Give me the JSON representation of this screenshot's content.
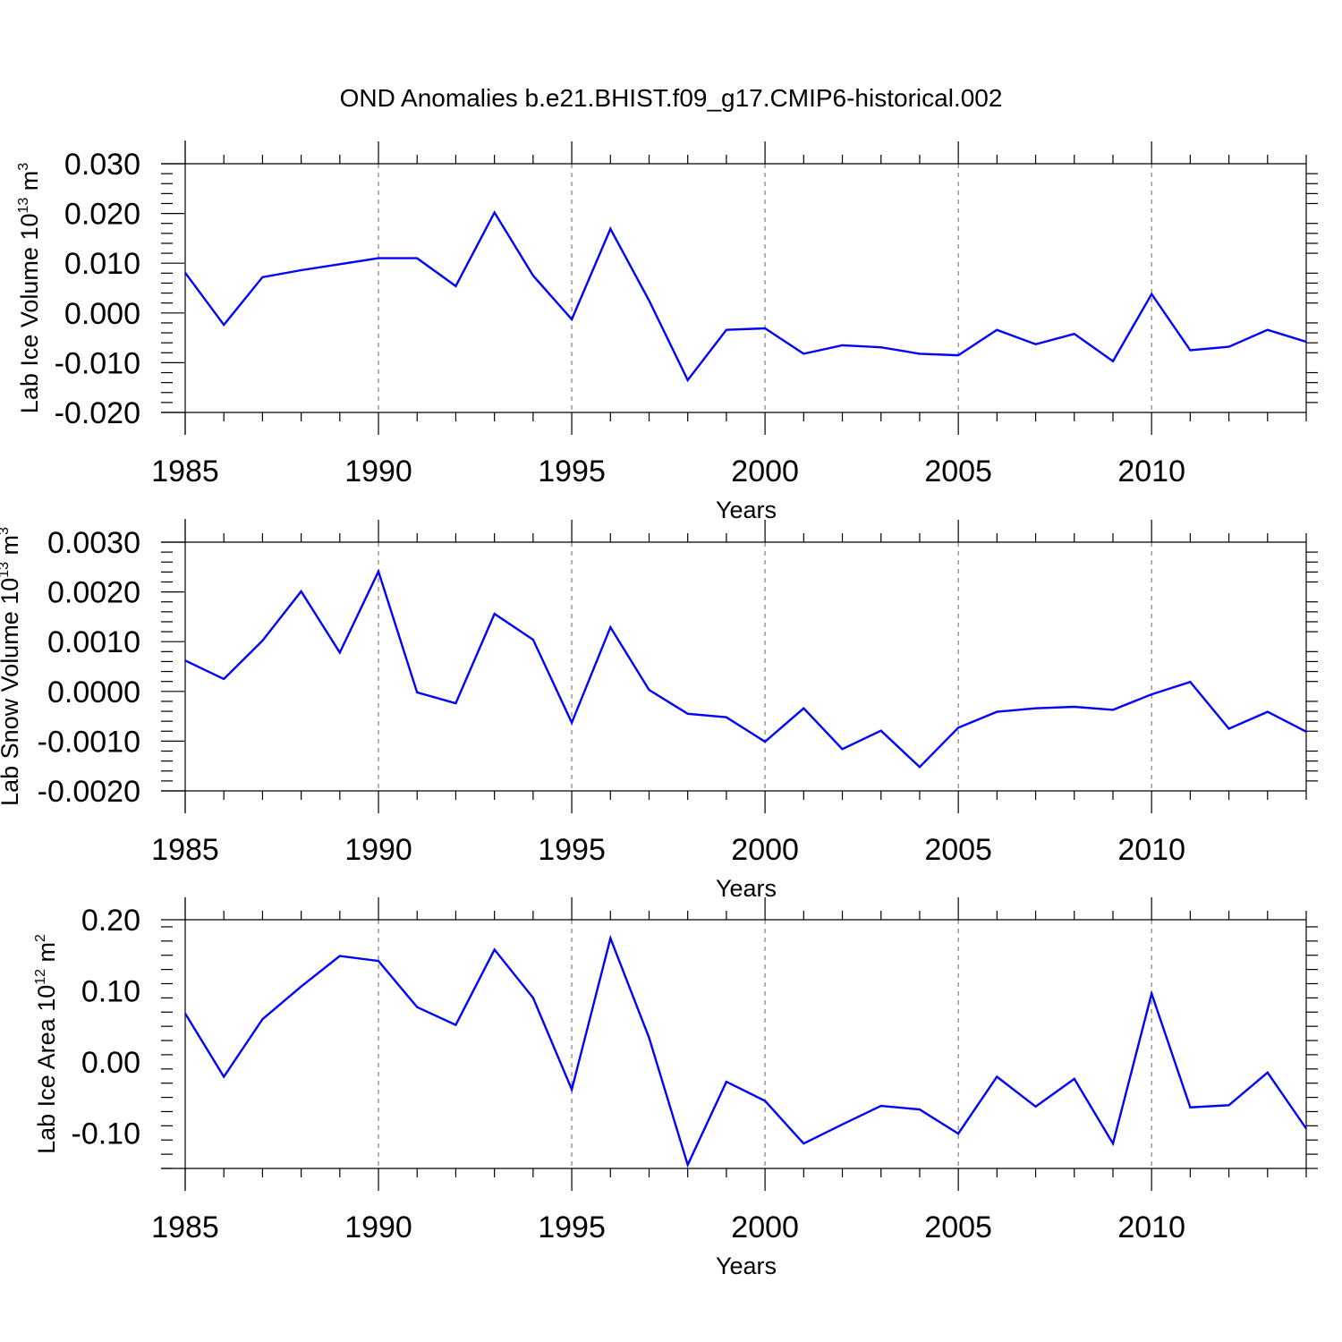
{
  "title": "OND Anomalies b.e21.BHIST.f09_g17.CMIP6-historical.002",
  "colors": {
    "series": "#0000ff",
    "axes": "#000000",
    "grid": "#808080"
  },
  "chart_data": [
    {
      "type": "line",
      "title": "OND Anomalies b.e21.BHIST.f09_g17.CMIP6-historical.002",
      "xlabel": "Years",
      "ylabel": "Lab Ice Volume 10",
      "ylabel_exp": "13",
      "ylabel_unit": " m",
      "ylabel_unit_exp": "3",
      "xlim": [
        1985,
        2014
      ],
      "ylim": [
        -0.02,
        0.03
      ],
      "xticks": [
        1985,
        1990,
        1995,
        2000,
        2005,
        2010
      ],
      "xtick_labels": [
        "1985",
        "1990",
        "1995",
        "2000",
        "2005",
        "2010"
      ],
      "yticks": [
        -0.02,
        -0.01,
        0.0,
        0.01,
        0.02,
        0.03
      ],
      "ytick_labels": [
        "-0.020",
        "-0.010",
        "0.000",
        "0.010",
        "0.020",
        "0.030"
      ],
      "grid": "dashed vertical at major x ticks",
      "x": [
        1985,
        1986,
        1987,
        1988,
        1989,
        1990,
        1991,
        1992,
        1993,
        1994,
        1995,
        1996,
        1997,
        1998,
        1999,
        2000,
        2001,
        2002,
        2003,
        2004,
        2005,
        2006,
        2007,
        2008,
        2009,
        2010,
        2011,
        2012,
        2013,
        2014
      ],
      "values": [
        0.0081,
        -0.0024,
        0.0072,
        0.0086,
        0.0098,
        0.011,
        0.011,
        0.0054,
        0.0202,
        0.0075,
        -0.0013,
        0.0169,
        0.0025,
        -0.0135,
        -0.0034,
        -0.0031,
        -0.0082,
        -0.0065,
        -0.0069,
        -0.0082,
        -0.0085,
        -0.0034,
        -0.0063,
        -0.0042,
        -0.0097,
        0.0038,
        -0.0075,
        -0.0068,
        -0.0034,
        -0.0058
      ]
    },
    {
      "type": "line",
      "xlabel": "Years",
      "ylabel": "Lab Snow Volume 10",
      "ylabel_exp": "13",
      "ylabel_unit": " m",
      "ylabel_unit_exp": "3",
      "xlim": [
        1985,
        2014
      ],
      "ylim": [
        -0.002,
        0.003
      ],
      "xticks": [
        1985,
        1990,
        1995,
        2000,
        2005,
        2010
      ],
      "xtick_labels": [
        "1985",
        "1990",
        "1995",
        "2000",
        "2005",
        "2010"
      ],
      "yticks": [
        -0.002,
        -0.001,
        0.0,
        0.001,
        0.002,
        0.003
      ],
      "ytick_labels": [
        "-0.0020",
        "-0.0010",
        "0.0000",
        "0.0010",
        "0.0020",
        "0.0030"
      ],
      "grid": "dashed vertical at major x ticks",
      "x": [
        1985,
        1986,
        1987,
        1988,
        1989,
        1990,
        1991,
        1992,
        1993,
        1994,
        1995,
        1996,
        1997,
        1998,
        1999,
        2000,
        2001,
        2002,
        2003,
        2004,
        2005,
        2006,
        2007,
        2008,
        2009,
        2010,
        2011,
        2012,
        2013,
        2014
      ],
      "values": [
        0.00062,
        0.00025,
        0.00102,
        0.00201,
        0.00078,
        0.00241,
        -2e-05,
        -0.00024,
        0.00156,
        0.00104,
        -0.00063,
        0.00129,
        3e-05,
        -0.00045,
        -0.00052,
        -0.00101,
        -0.00034,
        -0.00116,
        -0.00079,
        -0.00152,
        -0.00073,
        -0.00041,
        -0.00034,
        -0.00031,
        -0.00037,
        -6e-05,
        0.00019,
        -0.00075,
        -0.00041,
        -0.00081
      ]
    },
    {
      "type": "line",
      "xlabel": "Years",
      "ylabel": "Lab Ice Area 10",
      "ylabel_exp": "12",
      "ylabel_unit": " m",
      "ylabel_unit_exp": "2",
      "xlim": [
        1985,
        2014
      ],
      "ylim": [
        -0.15,
        0.2
      ],
      "xticks": [
        1985,
        1990,
        1995,
        2000,
        2005,
        2010
      ],
      "xtick_labels": [
        "1985",
        "1990",
        "1995",
        "2000",
        "2005",
        "2010"
      ],
      "yticks": [
        -0.1,
        0.0,
        0.1,
        0.2
      ],
      "ytick_labels": [
        "-0.10",
        "0.00",
        "0.10",
        "0.20"
      ],
      "grid": "dashed vertical at major x ticks",
      "x": [
        1985,
        1986,
        1987,
        1988,
        1989,
        1990,
        1991,
        1992,
        1993,
        1994,
        1995,
        1996,
        1997,
        1998,
        1999,
        2000,
        2001,
        2002,
        2003,
        2004,
        2005,
        2006,
        2007,
        2008,
        2009,
        2010,
        2011,
        2012,
        2013,
        2014
      ],
      "values": [
        0.068,
        -0.021,
        0.06,
        0.106,
        0.149,
        0.142,
        0.077,
        0.052,
        0.158,
        0.09,
        -0.039,
        0.174,
        0.034,
        -0.145,
        -0.028,
        -0.055,
        -0.115,
        -0.088,
        -0.062,
        -0.067,
        -0.101,
        -0.021,
        -0.063,
        -0.024,
        -0.115,
        0.096,
        -0.064,
        -0.061,
        -0.015,
        -0.094
      ]
    }
  ]
}
